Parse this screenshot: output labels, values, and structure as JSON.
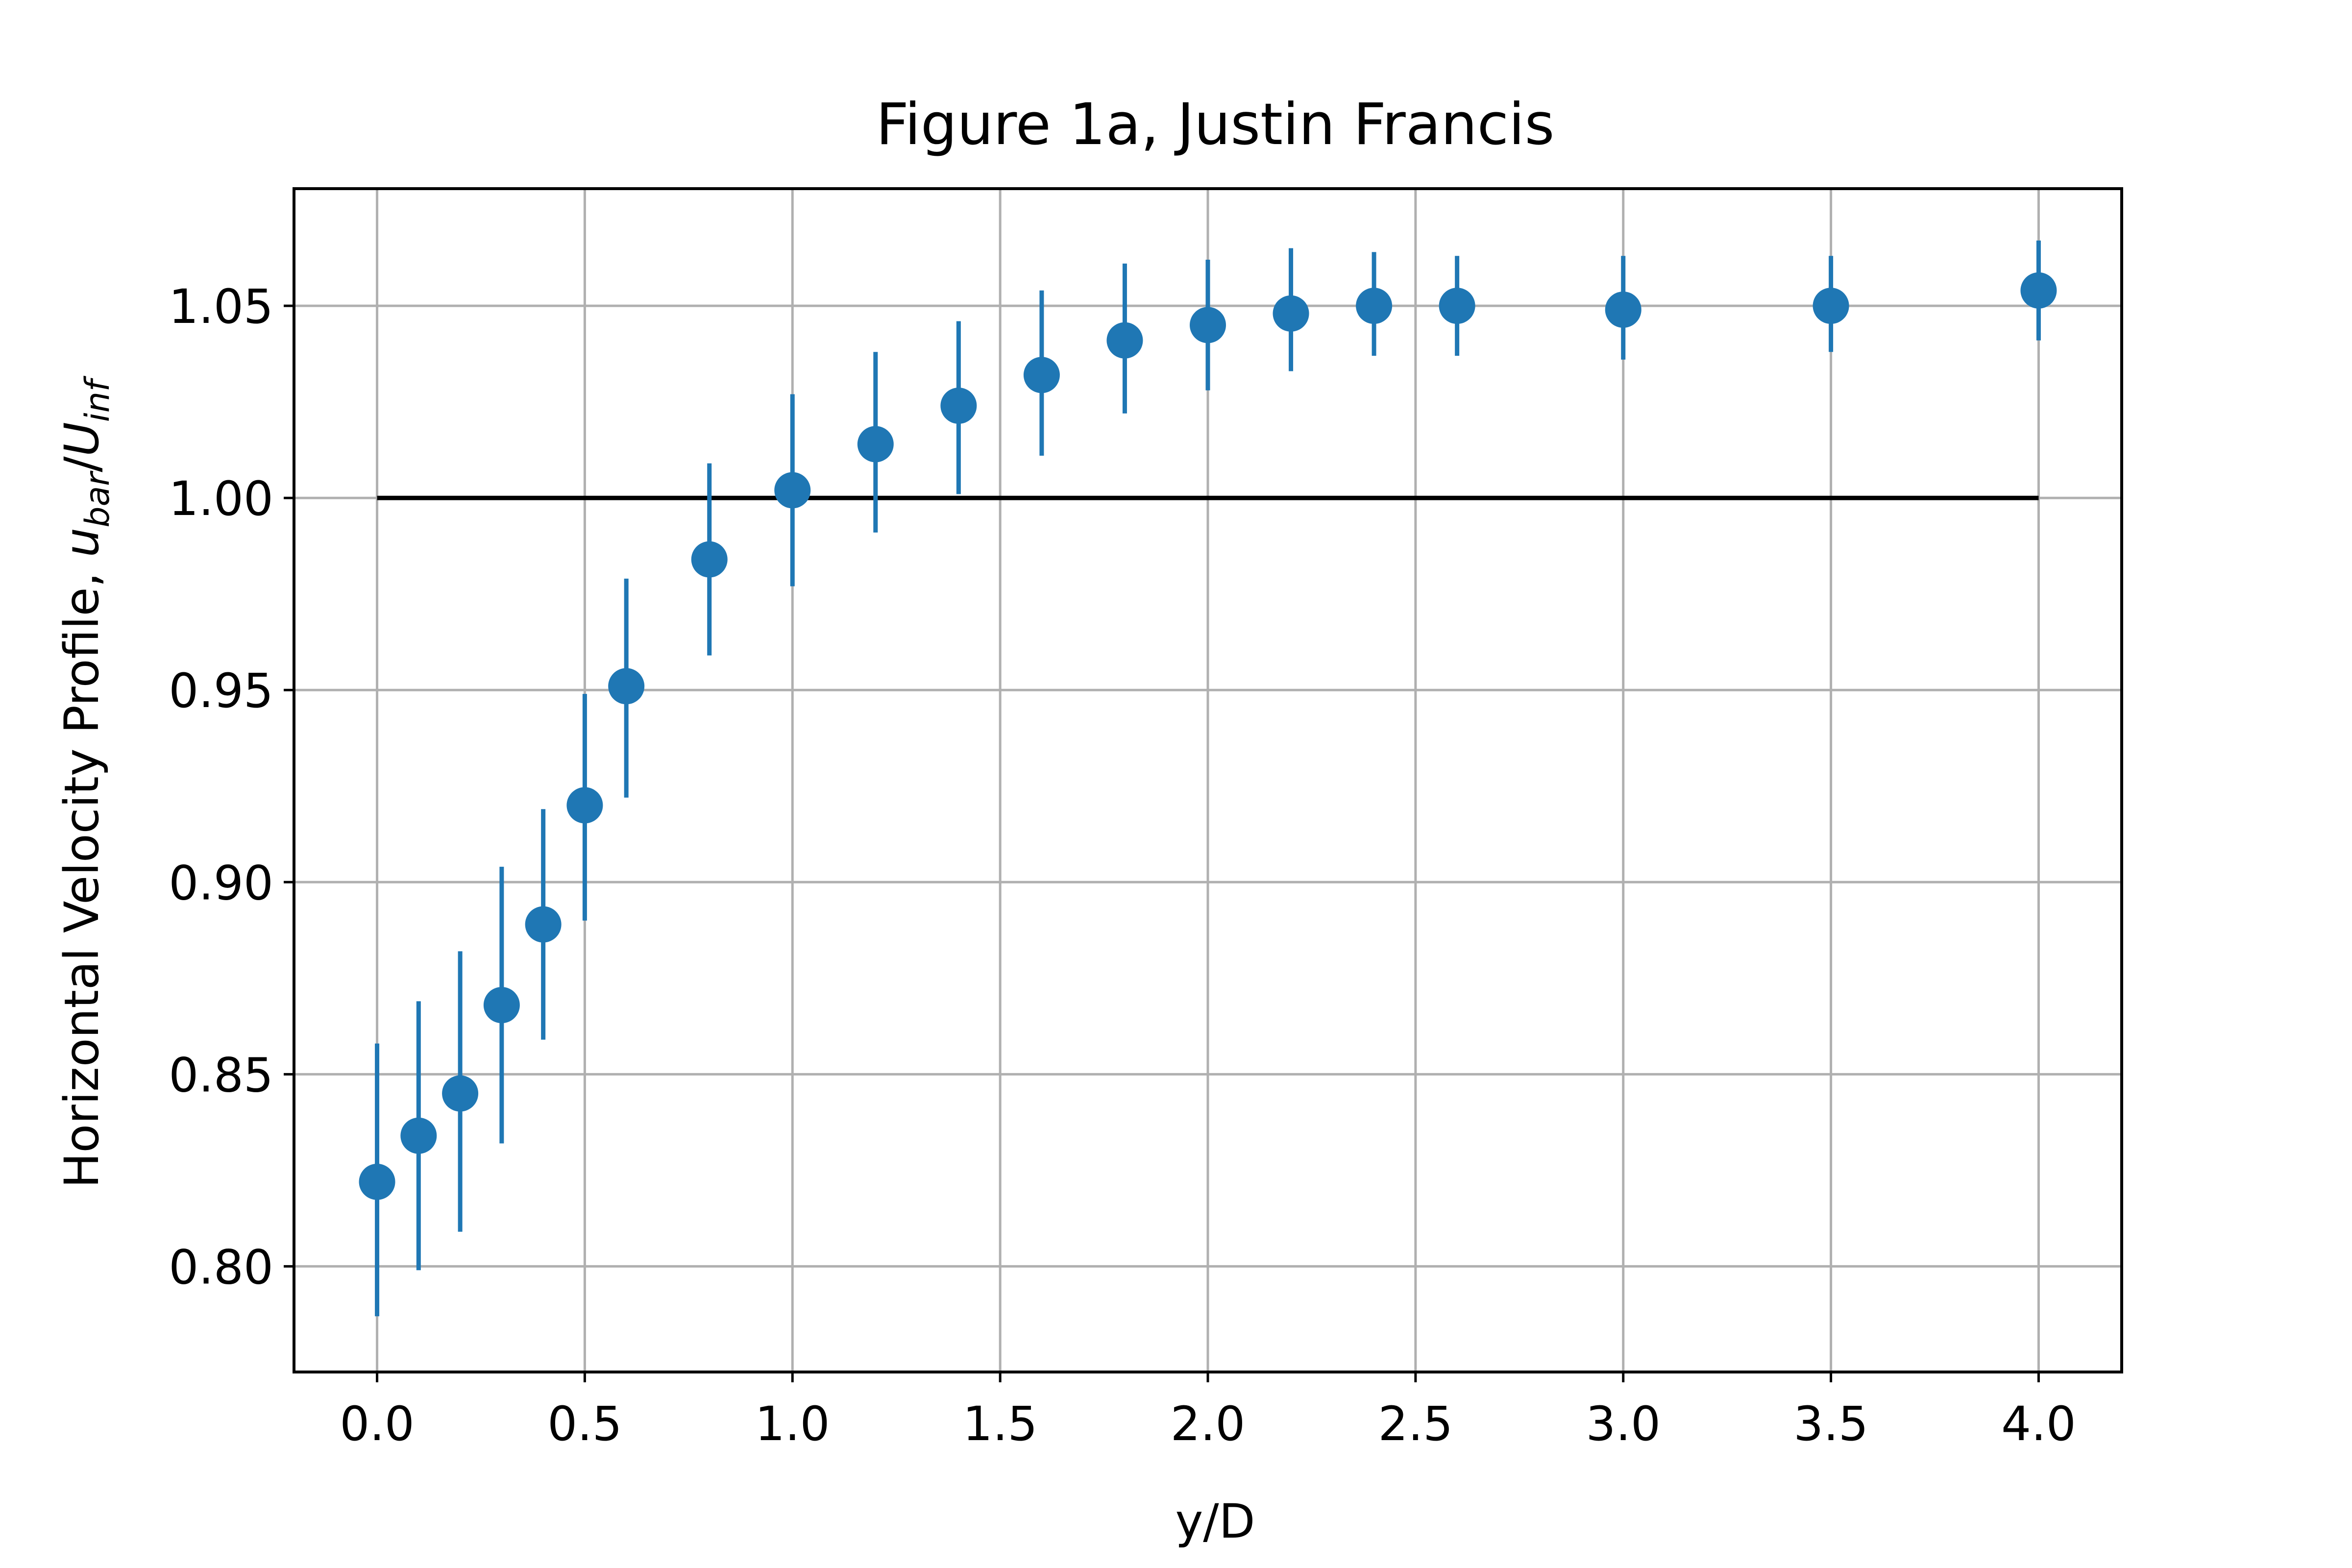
{
  "chart_data": {
    "type": "scatter",
    "title": "Figure 1a, Justin Francis",
    "xlabel": "y/D",
    "ylabel": {
      "prefix": "Horizontal Velocity Profile, ",
      "u": "u",
      "u_sub": "bar",
      "slash": "/",
      "U": "U",
      "U_sub": "inf"
    },
    "xlim": [
      -0.2,
      4.2
    ],
    "ylim": [
      0.7725,
      1.0805
    ],
    "xticks": [
      0.0,
      0.5,
      1.0,
      1.5,
      2.0,
      2.5,
      3.0,
      3.5,
      4.0
    ],
    "xtick_labels": [
      "0.0",
      "0.5",
      "1.0",
      "1.5",
      "2.0",
      "2.5",
      "3.0",
      "3.5",
      "4.0"
    ],
    "yticks": [
      0.8,
      0.85,
      0.9,
      0.95,
      1.0,
      1.05
    ],
    "ytick_labels": [
      "0.80",
      "0.85",
      "0.90",
      "0.95",
      "1.00",
      "1.05"
    ],
    "grid": true,
    "series": [
      {
        "color": "#1f77b4",
        "marker": "circle",
        "x": [
          0.0,
          0.1,
          0.2,
          0.3,
          0.4,
          0.5,
          0.6,
          0.8,
          1.0,
          1.2,
          1.4,
          1.6,
          1.8,
          2.0,
          2.2,
          2.4,
          2.6,
          3.0,
          3.5,
          4.0
        ],
        "y": [
          0.822,
          0.834,
          0.845,
          0.868,
          0.889,
          0.92,
          0.951,
          0.984,
          1.002,
          1.014,
          1.024,
          1.032,
          1.041,
          1.045,
          1.048,
          1.05,
          1.05,
          1.049,
          1.05,
          1.054
        ],
        "yerr_low": [
          0.787,
          0.799,
          0.809,
          0.832,
          0.859,
          0.89,
          0.922,
          0.959,
          0.977,
          0.991,
          1.001,
          1.011,
          1.022,
          1.028,
          1.033,
          1.037,
          1.037,
          1.036,
          1.038,
          1.041
        ],
        "yerr_high": [
          0.858,
          0.869,
          0.882,
          0.904,
          0.919,
          0.949,
          0.979,
          1.009,
          1.027,
          1.038,
          1.046,
          1.054,
          1.061,
          1.062,
          1.065,
          1.064,
          1.063,
          1.063,
          1.063,
          1.067
        ]
      }
    ],
    "reference_line": {
      "y": 1.0,
      "x_start": 0.0,
      "x_end": 4.0,
      "color": "#000000"
    },
    "colors": {
      "axes": "#000000",
      "grid": "#b0b0b0",
      "series": "#1f77b4",
      "background": "#ffffff"
    }
  }
}
